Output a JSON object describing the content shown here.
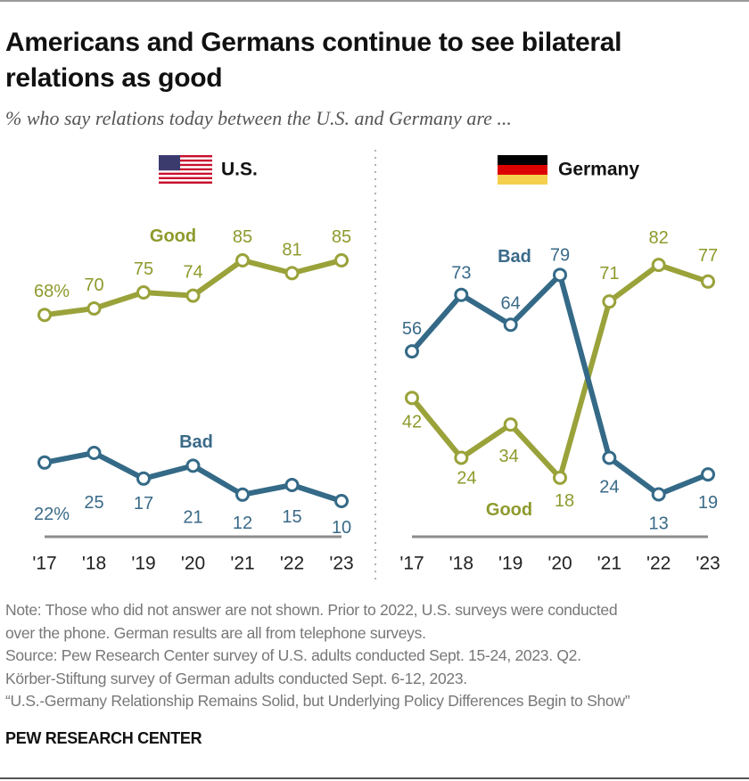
{
  "title": "Americans and Germans continue to see bilateral relations as good",
  "subtitle": "% who say relations today between the U.S. and Germany are ...",
  "notes": [
    "Note: Those who did not answer are not shown. Prior to 2022, U.S. surveys were conducted",
    "over the phone. German results are all from telephone surveys.",
    "Source: Pew Research Center survey of U.S. adults conducted Sept. 15-24, 2023. Q2.",
    "Körber-Stiftung survey of German adults conducted Sept. 6-12, 2023.",
    "“U.S.-Germany Relationship Remains Solid, but Underlying Policy Differences Begin to Show”"
  ],
  "source_org": "PEW RESEARCH CENTER",
  "colors": {
    "good": "#9aa23a",
    "good_label": "#8e9a2c",
    "bad": "#346a87",
    "bad_label": "#3a6a88",
    "axis": "#8c8c8c"
  },
  "chart_data": [
    {
      "type": "line",
      "panel_title": "U.S.",
      "flag_icon": "us-flag-icon",
      "categories": [
        "'17",
        "'18",
        "'19",
        "'20",
        "'21",
        "'22",
        "'23"
      ],
      "ylim": [
        0,
        100
      ],
      "grid": false,
      "series": [
        {
          "name": "Good",
          "values": [
            68,
            70,
            75,
            74,
            85,
            81,
            85
          ],
          "labels": [
            "68%",
            "70",
            "75",
            "74",
            "85",
            "81",
            "85"
          ]
        },
        {
          "name": "Bad",
          "values": [
            22,
            25,
            17,
            21,
            12,
            15,
            10
          ],
          "labels": [
            "22%",
            "25",
            "17",
            "21",
            "12",
            "15",
            "10"
          ]
        }
      ]
    },
    {
      "type": "line",
      "panel_title": "Germany",
      "flag_icon": "germany-flag-icon",
      "categories": [
        "'17",
        "'18",
        "'19",
        "'20",
        "'21",
        "'22",
        "'23"
      ],
      "ylim": [
        0,
        100
      ],
      "grid": false,
      "series": [
        {
          "name": "Good",
          "values": [
            42,
            24,
            34,
            18,
            71,
            82,
            77
          ],
          "labels": [
            "42",
            "24",
            "34",
            "18",
            "71",
            "82",
            "77"
          ]
        },
        {
          "name": "Bad",
          "values": [
            56,
            73,
            64,
            79,
            24,
            13,
            19
          ],
          "labels": [
            "56",
            "73",
            "64",
            "79",
            "24",
            "13",
            "19"
          ]
        }
      ]
    }
  ]
}
